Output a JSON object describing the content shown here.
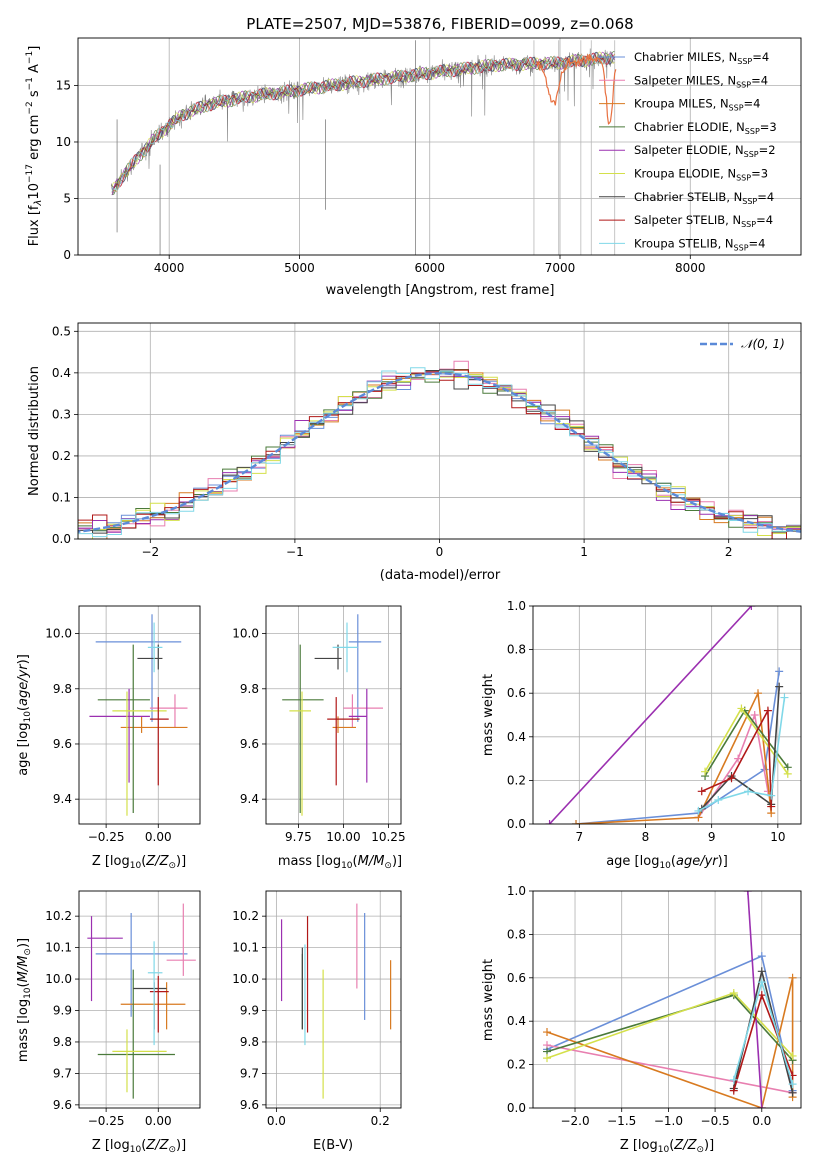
{
  "figure_title": "PLATE=2507, MJD=53876, FIBERID=0099, z=0.068",
  "colors": {
    "Chabrier MILES": "#6a8fd8",
    "Salpeter MILES": "#e87fb0",
    "Kroupa MILES": "#d87a20",
    "Chabrier ELODIE": "#4a7a3a",
    "Salpeter ELODIE": "#9b30b0",
    "Kroupa ELODIE": "#d4e04a",
    "Chabrier STELIB": "#444444",
    "Salpeter STELIB": "#b01818",
    "Kroupa STELIB": "#80d8e8",
    "data": "#808080",
    "normal": "#5b8ad8"
  },
  "chart_data": [
    {
      "type": "line",
      "panel": "spectrum",
      "xlabel": "wavelength [Angstrom, rest frame]",
      "ylabel_main": "Flux [f",
      "ylabel_rest": "10",
      "ylabel_exp": "−17",
      "ylabel_tail": " erg cm",
      "xlim": [
        3300,
        8850
      ],
      "ylim": [
        0,
        19.2
      ],
      "xticks": [
        4000,
        5000,
        6000,
        7000,
        8000
      ],
      "yticks": [
        0,
        5,
        10,
        15
      ],
      "legend": [
        "Chabrier MILES",
        "Salpeter MILES",
        "Kroupa MILES",
        "Chabrier ELODIE",
        "Salpeter ELODIE",
        "Kroupa ELODIE",
        "Chabrier STELIB",
        "Salpeter STELIB",
        "Kroupa STELIB"
      ],
      "legend_nssp": [
        4,
        4,
        4,
        3,
        2,
        3,
        4,
        4,
        4
      ],
      "legend_sub": "SSP",
      "continuum": {
        "x": [
          3550,
          3700,
          3900,
          4100,
          4300,
          4600,
          5000,
          5500,
          6000,
          6500,
          7000,
          7400
        ],
        "y": [
          5.5,
          7.8,
          10.5,
          12.4,
          13.3,
          14.0,
          14.6,
          15.4,
          16.1,
          16.8,
          17.0,
          17.5
        ]
      }
    },
    {
      "type": "line",
      "panel": "residual histogram",
      "xlabel": "(data-model)/error",
      "ylabel": "Normed distribution",
      "xlim": [
        -2.5,
        2.5
      ],
      "ylim": [
        0,
        0.52
      ],
      "xticks": [
        -2,
        -1,
        0,
        1,
        2
      ],
      "yticks": [
        0.0,
        0.1,
        0.2,
        0.3,
        0.4,
        0.5
      ],
      "legend": [
        "𝒩(0, 1)"
      ]
    },
    {
      "type": "scatter",
      "panel": "age vs Z",
      "xlabel": "Z [log",
      "ylabel": "age  [log",
      "xlim": [
        -0.38,
        0.2
      ],
      "ylim": [
        9.31,
        10.1
      ],
      "xticks": [
        -0.25,
        0.0
      ],
      "yticks": [
        9.4,
        9.6,
        9.8,
        10.0
      ],
      "points": [
        {
          "model": "Chabrier MILES",
          "x": -0.03,
          "y": 9.97,
          "xerr": [
            0.27,
            0.14
          ],
          "yerr": [
            0.29,
            0.1
          ]
        },
        {
          "model": "Salpeter MILES",
          "x": 0.08,
          "y": 9.73,
          "xerr": [
            0.12,
            0.06
          ],
          "yerr": [
            0.07,
            0.05
          ]
        },
        {
          "model": "Kroupa MILES",
          "x": -0.08,
          "y": 9.66,
          "xerr": [
            0.1,
            0.22
          ],
          "yerr": [
            0.02,
            0.04
          ]
        },
        {
          "model": "Chabrier ELODIE",
          "x": -0.12,
          "y": 9.76,
          "xerr": [
            0.17,
            0.08
          ],
          "yerr": [
            0.41,
            0.2
          ]
        },
        {
          "model": "Salpeter ELODIE",
          "x": -0.14,
          "y": 9.7,
          "xerr": [
            0.19,
            0.1
          ],
          "yerr": [
            0.24,
            0.1
          ]
        },
        {
          "model": "Kroupa ELODIE",
          "x": -0.15,
          "y": 9.72,
          "xerr": [
            0.07,
            0.19
          ],
          "yerr": [
            0.38,
            0.07
          ]
        },
        {
          "model": "Chabrier STELIB",
          "x": 0.0,
          "y": 9.91,
          "xerr": [
            0.1,
            0.02
          ],
          "yerr": [
            0.04,
            0.05
          ]
        },
        {
          "model": "Salpeter STELIB",
          "x": 0.0,
          "y": 9.69,
          "xerr": [
            0.04,
            0.05
          ],
          "yerr": [
            0.24,
            0.08
          ]
        },
        {
          "model": "Kroupa STELIB",
          "x": -0.02,
          "y": 9.95,
          "xerr": [
            0.03,
            0.04
          ],
          "yerr": [
            0.09,
            0.09
          ]
        }
      ]
    },
    {
      "type": "scatter",
      "panel": "age vs mass",
      "xlabel": "mass [log",
      "xlim": [
        9.57,
        10.32
      ],
      "ylim": [
        9.31,
        10.1
      ],
      "xticks": [
        9.75,
        10.0,
        10.25
      ],
      "yticks": [
        9.4,
        9.6,
        9.8,
        10.0
      ],
      "points": [
        {
          "model": "Chabrier MILES",
          "x": 10.08,
          "y": 9.97,
          "xerr": [
            0.05,
            0.13
          ],
          "yerr": [
            0.29,
            0.1
          ]
        },
        {
          "model": "Salpeter MILES",
          "x": 10.05,
          "y": 9.73,
          "xerr": [
            0.05,
            0.17
          ],
          "yerr": [
            0.07,
            0.05
          ]
        },
        {
          "model": "Kroupa MILES",
          "x": 9.97,
          "y": 9.66,
          "xerr": [
            0.03,
            0.1
          ],
          "yerr": [
            0.02,
            0.04
          ]
        },
        {
          "model": "Chabrier ELODIE",
          "x": 9.76,
          "y": 9.76,
          "xerr": [
            0.1,
            0.13
          ],
          "yerr": [
            0.41,
            0.2
          ]
        },
        {
          "model": "Salpeter ELODIE",
          "x": 10.13,
          "y": 9.7,
          "xerr": [
            0.1,
            0.0
          ],
          "yerr": [
            0.24,
            0.1
          ]
        },
        {
          "model": "Kroupa ELODIE",
          "x": 9.77,
          "y": 9.72,
          "xerr": [
            0.07,
            0.05
          ],
          "yerr": [
            0.38,
            0.07
          ]
        },
        {
          "model": "Chabrier STELIB",
          "x": 9.97,
          "y": 9.91,
          "xerr": [
            0.13,
            0.02
          ],
          "yerr": [
            0.04,
            0.05
          ]
        },
        {
          "model": "Salpeter STELIB",
          "x": 9.96,
          "y": 9.69,
          "xerr": [
            0.05,
            0.13
          ],
          "yerr": [
            0.24,
            0.08
          ]
        },
        {
          "model": "Kroupa STELIB",
          "x": 10.02,
          "y": 9.95,
          "xerr": [
            0.08,
            0.06
          ],
          "yerr": [
            0.09,
            0.09
          ]
        }
      ]
    },
    {
      "type": "line",
      "panel": "mass weight vs age",
      "xlabel": "age  [log",
      "ylabel": "mass weight",
      "xlim": [
        6.3,
        10.35
      ],
      "ylim": [
        0,
        1.0
      ],
      "xticks": [
        7,
        8,
        9,
        10
      ],
      "yticks": [
        0.0,
        0.2,
        0.4,
        0.6,
        0.8,
        1.0
      ],
      "series": [
        {
          "model": "Chabrier MILES",
          "x": [
            6.95,
            8.8,
            9.8,
            10.02
          ],
          "y": [
            0.0,
            0.05,
            0.25,
            0.7
          ]
        },
        {
          "model": "Salpeter MILES",
          "x": [
            8.8,
            9.4,
            9.65,
            9.85
          ],
          "y": [
            0.03,
            0.3,
            0.5,
            0.15
          ]
        },
        {
          "model": "Kroupa MILES",
          "x": [
            6.95,
            8.8,
            9.7,
            9.9
          ],
          "y": [
            0.0,
            0.03,
            0.6,
            0.05
          ]
        },
        {
          "model": "Chabrier ELODIE",
          "x": [
            8.9,
            9.5,
            10.15
          ],
          "y": [
            0.22,
            0.52,
            0.26
          ]
        },
        {
          "model": "Salpeter ELODIE",
          "x": [
            6.55,
            9.6
          ],
          "y": [
            0.0,
            1.0
          ]
        },
        {
          "model": "Kroupa ELODIE",
          "x": [
            8.9,
            9.45,
            10.15
          ],
          "y": [
            0.24,
            0.53,
            0.23
          ]
        },
        {
          "model": "Chabrier STELIB",
          "x": [
            8.85,
            9.3,
            9.9,
            10.02
          ],
          "y": [
            0.07,
            0.22,
            0.09,
            0.63
          ]
        },
        {
          "model": "Salpeter STELIB",
          "x": [
            8.85,
            9.3,
            9.85,
            9.9
          ],
          "y": [
            0.15,
            0.21,
            0.52,
            0.08
          ]
        },
        {
          "model": "Kroupa STELIB",
          "x": [
            8.8,
            9.1,
            9.55,
            9.9,
            10.1
          ],
          "y": [
            0.06,
            0.11,
            0.15,
            0.13,
            0.58
          ]
        }
      ]
    },
    {
      "type": "scatter",
      "panel": "mass vs Z",
      "xlabel": "Z [log",
      "ylabel": "mass [log",
      "xlim": [
        -0.38,
        0.2
      ],
      "ylim": [
        9.59,
        10.28
      ],
      "xticks": [
        -0.25,
        0.0
      ],
      "yticks": [
        9.6,
        9.7,
        9.8,
        9.9,
        10.0,
        10.1,
        10.2
      ],
      "points": [
        {
          "model": "Chabrier MILES",
          "x": -0.13,
          "y": 10.08,
          "xerr": [
            0.17,
            0.27
          ],
          "yerr": [
            0.2,
            0.13
          ]
        },
        {
          "model": "Salpeter MILES",
          "x": 0.12,
          "y": 10.06,
          "xerr": [
            0.08,
            0.06
          ],
          "yerr": [
            0.05,
            0.18
          ]
        },
        {
          "model": "Kroupa MILES",
          "x": 0.04,
          "y": 9.92,
          "xerr": [
            0.22,
            0.09
          ],
          "yerr": [
            0.08,
            0.07
          ]
        },
        {
          "model": "Chabrier ELODIE",
          "x": -0.12,
          "y": 9.76,
          "xerr": [
            0.17,
            0.2
          ],
          "yerr": [
            0.14,
            0.27
          ]
        },
        {
          "model": "Salpeter ELODIE",
          "x": -0.32,
          "y": 10.13,
          "xerr": [
            0.02,
            0.15
          ],
          "yerr": [
            0.2,
            0.07
          ]
        },
        {
          "model": "Kroupa ELODIE",
          "x": -0.15,
          "y": 9.77,
          "xerr": [
            0.07,
            0.19
          ],
          "yerr": [
            0.13,
            0.07
          ]
        },
        {
          "model": "Chabrier STELIB",
          "x": -0.02,
          "y": 9.97,
          "xerr": [
            0.1,
            0.06
          ],
          "yerr": [
            0.13,
            0.02
          ]
        },
        {
          "model": "Salpeter STELIB",
          "x": 0.0,
          "y": 9.96,
          "xerr": [
            0.04,
            0.05
          ],
          "yerr": [
            0.13,
            0.05
          ]
        },
        {
          "model": "Kroupa STELIB",
          "x": -0.02,
          "y": 10.02,
          "xerr": [
            0.03,
            0.04
          ],
          "yerr": [
            0.23,
            0.1
          ]
        }
      ]
    },
    {
      "type": "scatter",
      "panel": "mass vs E(B-V)",
      "xlabel": "E(B-V)",
      "xlim": [
        -0.02,
        0.24
      ],
      "ylim": [
        9.59,
        10.28
      ],
      "xticks": [
        0.0,
        0.2
      ],
      "yticks": [
        9.6,
        9.7,
        9.8,
        9.9,
        10.0,
        10.1,
        10.2
      ],
      "points": [
        {
          "model": "Chabrier MILES",
          "ebv": 0.17,
          "lo": 9.87,
          "hi": 10.21
        },
        {
          "model": "Salpeter MILES",
          "ebv": 0.155,
          "lo": 9.97,
          "hi": 10.24
        },
        {
          "model": "Kroupa MILES",
          "ebv": 0.22,
          "lo": 9.84,
          "hi": 10.06
        },
        {
          "model": "Chabrier ELODIE",
          "ebv": 0.05,
          "lo": 9.84,
          "hi": 10.08
        },
        {
          "model": "Salpeter ELODIE",
          "ebv": 0.01,
          "lo": 9.93,
          "hi": 10.19
        },
        {
          "model": "Kroupa ELODIE",
          "ebv": 0.09,
          "lo": 9.62,
          "hi": 10.03
        },
        {
          "model": "Chabrier STELIB",
          "ebv": 0.05,
          "lo": 9.84,
          "hi": 10.1
        },
        {
          "model": "Salpeter STELIB",
          "ebv": 0.06,
          "lo": 9.83,
          "hi": 10.2
        },
        {
          "model": "Kroupa STELIB",
          "ebv": 0.055,
          "lo": 9.79,
          "hi": 10.11
        }
      ]
    },
    {
      "type": "line",
      "panel": "mass weight vs Z",
      "xlabel": "Z [log",
      "ylabel": "mass weight",
      "xlim": [
        -2.45,
        0.42
      ],
      "ylim": [
        0,
        1.0
      ],
      "xticks": [
        -2.0,
        -1.5,
        -1.0,
        -0.5,
        0.0
      ],
      "yticks": [
        0.0,
        0.2,
        0.4,
        0.6,
        0.8,
        1.0
      ],
      "series": [
        {
          "model": "Chabrier MILES",
          "x": [
            -2.3,
            0.0,
            0.33
          ],
          "y": [
            0.27,
            0.7,
            0.08
          ]
        },
        {
          "model": "Salpeter MILES",
          "x": [
            -2.3,
            0.33
          ],
          "y": [
            0.29,
            0.07
          ]
        },
        {
          "model": "Kroupa MILES",
          "x": [
            -2.3,
            0.0,
            0.33,
            0.33
          ],
          "y": [
            0.35,
            0.0,
            0.6,
            0.05
          ]
        },
        {
          "model": "Chabrier ELODIE",
          "x": [
            -2.3,
            -0.3,
            0.33
          ],
          "y": [
            0.26,
            0.52,
            0.22
          ]
        },
        {
          "model": "Salpeter ELODIE",
          "x": [
            -0.15,
            0.0
          ],
          "y": [
            1.0,
            0.0
          ]
        },
        {
          "model": "Kroupa ELODIE",
          "x": [
            -2.3,
            -0.3,
            0.33
          ],
          "y": [
            0.23,
            0.53,
            0.24
          ]
        },
        {
          "model": "Chabrier STELIB",
          "x": [
            -0.3,
            0.0,
            0.33
          ],
          "y": [
            0.09,
            0.63,
            0.07
          ]
        },
        {
          "model": "Salpeter STELIB",
          "x": [
            -0.3,
            0.0,
            0.33
          ],
          "y": [
            0.08,
            0.52,
            0.15
          ]
        },
        {
          "model": "Kroupa STELIB",
          "x": [
            -0.3,
            0.0,
            0.33
          ],
          "y": [
            0.13,
            0.58,
            0.11
          ]
        }
      ]
    }
  ]
}
